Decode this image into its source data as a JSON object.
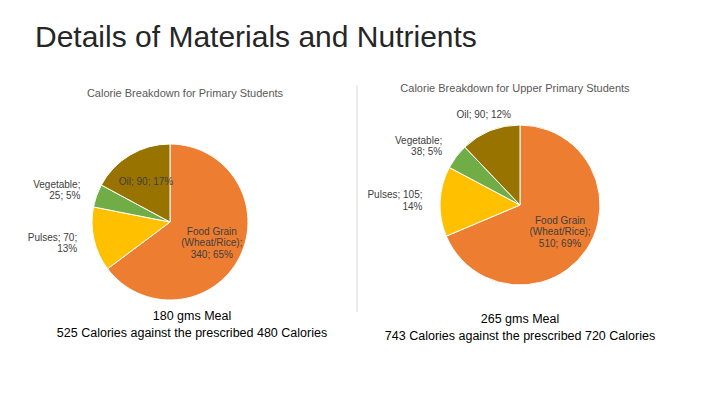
{
  "title": "Details of Materials and Nutrients",
  "chart_data": [
    {
      "type": "pie",
      "title": "Calorie Breakdown for Primary Students",
      "values": [
        340,
        70,
        25,
        90
      ],
      "value_labels": [
        "Food Grain (Wheat/Rice); 340; 65%",
        "Pulses; 70; 13%",
        "Vegetable; 25; 5%",
        "Oil; 90; 17%"
      ],
      "colors": [
        "#ed7d31",
        "#ffc000",
        "#70ad47",
        "#997300"
      ],
      "data_labels": true,
      "annotations": [
        "180 gms Meal",
        "525 Calories against the prescribed 480 Calories"
      ]
    },
    {
      "type": "pie",
      "title": "Calorie Breakdown for Upper Primary Students",
      "values": [
        510,
        105,
        38,
        90
      ],
      "value_labels": [
        "Food Grain (Wheat/Rice); 510; 69%",
        "Pulses; 105; 14%",
        "Vegetable; 38; 5%",
        "Oil; 90; 12%"
      ],
      "colors": [
        "#ed7d31",
        "#ffc000",
        "#70ad47",
        "#997300"
      ],
      "data_labels": true,
      "annotations": [
        "265 gms Meal",
        "743 Calories against the prescribed 720 Calories"
      ]
    }
  ]
}
